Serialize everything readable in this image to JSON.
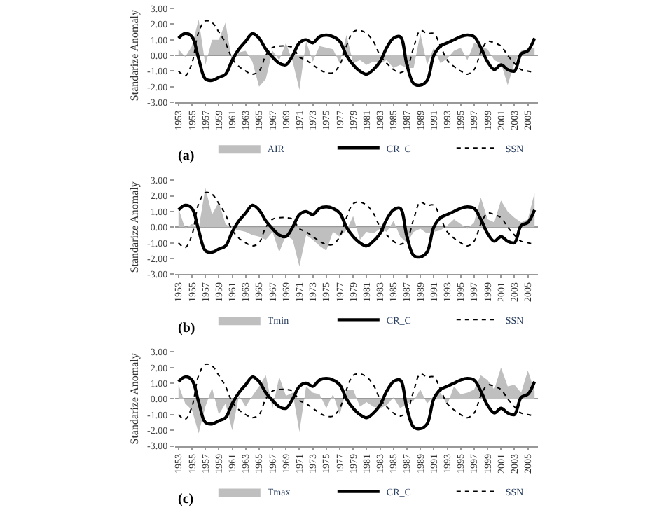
{
  "chart_data": [
    {
      "type": "line",
      "ylabel": "Standarize Anomaly",
      "annotations": [
        "(a)"
      ],
      "legend": "bottom",
      "x": [
        1953,
        1954,
        1955,
        1956,
        1957,
        1958,
        1959,
        1960,
        1961,
        1962,
        1963,
        1964,
        1965,
        1966,
        1967,
        1968,
        1969,
        1970,
        1971,
        1972,
        1973,
        1974,
        1975,
        1976,
        1977,
        1978,
        1979,
        1980,
        1981,
        1982,
        1983,
        1984,
        1985,
        1986,
        1987,
        1988,
        1989,
        1990,
        1991,
        1992,
        1993,
        1994,
        1995,
        1996,
        1997,
        1998,
        1999,
        2000,
        2001,
        2002,
        2003,
        2004,
        2005,
        2006
      ],
      "xlim": [
        1952.5,
        2006.5
      ],
      "xticks": [
        1953,
        1955,
        1957,
        1959,
        1961,
        1963,
        1965,
        1967,
        1969,
        1971,
        1973,
        1975,
        1977,
        1979,
        1981,
        1983,
        1985,
        1987,
        1989,
        1991,
        1993,
        1995,
        1997,
        1999,
        2001,
        2003,
        2005
      ],
      "ylim": [
        -3,
        3
      ],
      "yticks": [
        {
          "value": -3,
          "label": "-3.00"
        },
        {
          "value": -2,
          "label": "-2.00"
        },
        {
          "value": -1,
          "label": "-1.00"
        },
        {
          "value": 0,
          "label": "0.00"
        },
        {
          "value": 1,
          "label": "1.00"
        },
        {
          "value": 2,
          "label": "2.00"
        },
        {
          "value": 3,
          "label": "3.00"
        }
      ],
      "series": [
        {
          "name": "AIR",
          "type": "area",
          "color": "#bfbfbf",
          "values": [
            0.4,
            -0.1,
            0.6,
            2.3,
            -0.6,
            1.0,
            1.0,
            2.1,
            -0.5,
            0.2,
            0.3,
            -0.4,
            -2.0,
            -1.5,
            0.3,
            -0.3,
            0.8,
            -0.4,
            -2.2,
            0.9,
            -0.4,
            0.6,
            0.5,
            0.4,
            -0.5,
            1.3,
            -0.5,
            -0.3,
            -0.6,
            -0.4,
            -0.5,
            -0.3,
            -0.8,
            -0.6,
            -0.8,
            -0.8,
            1.4,
            -0.6,
            0.5,
            -0.5,
            -0.2,
            0.3,
            0.5,
            -0.3,
            0.8,
            0.6,
            0.4,
            -0.3,
            -0.5,
            -1.9,
            -0.5,
            0.3,
            0.4,
            0.5
          ]
        },
        {
          "name": "CR_C",
          "color": "#000000",
          "line_style": "solid",
          "values": [
            1.1,
            1.4,
            1.2,
            -0.2,
            -1.5,
            -1.6,
            -1.4,
            -1.2,
            -0.3,
            0.4,
            0.9,
            1.4,
            1.1,
            0.4,
            -0.1,
            -0.5,
            -0.6,
            0.0,
            0.8,
            1.0,
            0.8,
            1.2,
            1.3,
            1.2,
            0.9,
            0.0,
            -0.6,
            -1.0,
            -1.2,
            -0.9,
            -0.4,
            0.5,
            1.1,
            1.2,
            -0.6,
            -1.8,
            -1.9,
            -1.6,
            0.0,
            0.6,
            0.8,
            1.0,
            1.2,
            1.3,
            1.2,
            0.5,
            -0.4,
            -0.9,
            -0.6,
            -0.9,
            -1.0,
            0.1,
            0.3,
            1.1
          ]
        },
        {
          "name": "SSN",
          "color": "#000000",
          "line_style": "dotted",
          "values": [
            -1.0,
            -1.3,
            -0.5,
            1.5,
            2.2,
            2.1,
            1.5,
            0.8,
            -0.2,
            -0.7,
            -1.0,
            -1.2,
            -1.0,
            0.0,
            0.5,
            0.6,
            0.6,
            0.5,
            -0.1,
            -0.3,
            -0.6,
            -0.9,
            -1.1,
            -1.1,
            -0.6,
            0.6,
            1.5,
            1.6,
            1.4,
            0.9,
            0.0,
            -0.5,
            -0.9,
            -1.1,
            -0.8,
            0.5,
            1.6,
            1.4,
            1.4,
            0.6,
            -0.3,
            -0.7,
            -1.0,
            -1.2,
            -0.9,
            0.2,
            0.9,
            0.8,
            0.6,
            0.0,
            -0.5,
            -0.9,
            -1.0,
            -1.1
          ]
        }
      ]
    },
    {
      "type": "line",
      "ylabel": "Standarize Anomaly",
      "annotations": [
        "(b)"
      ],
      "legend": "bottom",
      "x": [
        1953,
        1954,
        1955,
        1956,
        1957,
        1958,
        1959,
        1960,
        1961,
        1962,
        1963,
        1964,
        1965,
        1966,
        1967,
        1968,
        1969,
        1970,
        1971,
        1972,
        1973,
        1974,
        1975,
        1976,
        1977,
        1978,
        1979,
        1980,
        1981,
        1982,
        1983,
        1984,
        1985,
        1986,
        1987,
        1988,
        1989,
        1990,
        1991,
        1992,
        1993,
        1994,
        1995,
        1996,
        1997,
        1998,
        1999,
        2000,
        2001,
        2002,
        2003,
        2004,
        2005,
        2006
      ],
      "xlim": [
        1952.5,
        2006.5
      ],
      "xticks": [
        1953,
        1955,
        1957,
        1959,
        1961,
        1963,
        1965,
        1967,
        1969,
        1971,
        1973,
        1975,
        1977,
        1979,
        1981,
        1983,
        1985,
        1987,
        1989,
        1991,
        1993,
        1995,
        1997,
        1999,
        2001,
        2003,
        2005
      ],
      "ylim": [
        -3,
        3
      ],
      "yticks": [
        {
          "value": -3,
          "label": "-3.00"
        },
        {
          "value": -2,
          "label": "-2.00"
        },
        {
          "value": -1,
          "label": "-1.00"
        },
        {
          "value": 0,
          "label": "0.00"
        },
        {
          "value": 1,
          "label": "1.00"
        },
        {
          "value": 2,
          "label": "2.00"
        },
        {
          "value": 3,
          "label": "3.00"
        }
      ],
      "series": [
        {
          "name": "Tmin",
          "type": "area",
          "color": "#bfbfbf",
          "values": [
            1.2,
            -0.1,
            0.2,
            -0.1,
            2.5,
            0.8,
            1.6,
            0.2,
            -0.1,
            -0.2,
            -0.3,
            -0.5,
            -0.6,
            -0.8,
            -0.3,
            -1.6,
            -0.5,
            -0.8,
            -2.5,
            -0.5,
            -0.8,
            -1.2,
            -1.5,
            -0.3,
            -0.6,
            -0.2,
            0.7,
            -0.8,
            -0.3,
            -0.4,
            -0.1,
            -0.3,
            0.4,
            -0.6,
            -1.0,
            -0.3,
            -0.1,
            -0.4,
            -0.3,
            -0.2,
            0.1,
            0.5,
            0.2,
            -0.1,
            0.3,
            1.9,
            0.5,
            0.3,
            1.7,
            1.0,
            0.6,
            0.3,
            0.5,
            2.2
          ]
        },
        {
          "name": "CR_C",
          "color": "#000000",
          "line_style": "solid",
          "values": [
            1.1,
            1.4,
            1.2,
            -0.2,
            -1.5,
            -1.6,
            -1.4,
            -1.2,
            -0.3,
            0.4,
            0.9,
            1.4,
            1.1,
            0.4,
            -0.1,
            -0.5,
            -0.6,
            0.0,
            0.8,
            1.0,
            0.8,
            1.2,
            1.3,
            1.2,
            0.9,
            0.0,
            -0.6,
            -1.0,
            -1.2,
            -0.9,
            -0.4,
            0.5,
            1.1,
            1.2,
            -0.6,
            -1.8,
            -1.9,
            -1.6,
            0.0,
            0.6,
            0.8,
            1.0,
            1.2,
            1.3,
            1.2,
            0.5,
            -0.4,
            -0.9,
            -0.6,
            -0.9,
            -1.0,
            0.1,
            0.3,
            1.1
          ]
        },
        {
          "name": "SSN",
          "color": "#000000",
          "line_style": "dotted",
          "values": [
            -1.0,
            -1.3,
            -0.5,
            1.5,
            2.2,
            2.1,
            1.5,
            0.8,
            -0.2,
            -0.7,
            -1.0,
            -1.2,
            -1.0,
            0.0,
            0.5,
            0.6,
            0.6,
            0.5,
            -0.1,
            -0.3,
            -0.6,
            -0.9,
            -1.1,
            -1.1,
            -0.6,
            0.6,
            1.5,
            1.6,
            1.4,
            0.9,
            0.0,
            -0.5,
            -0.9,
            -1.1,
            -0.8,
            0.5,
            1.6,
            1.4,
            1.4,
            0.6,
            -0.3,
            -0.7,
            -1.0,
            -1.2,
            -0.9,
            0.2,
            0.9,
            0.8,
            0.6,
            0.0,
            -0.5,
            -0.9,
            -1.0,
            -1.1
          ]
        }
      ]
    },
    {
      "type": "line",
      "ylabel": "Standarize Anomaly",
      "annotations": [
        "(c)"
      ],
      "legend": "bottom",
      "x": [
        1953,
        1954,
        1955,
        1956,
        1957,
        1958,
        1959,
        1960,
        1961,
        1962,
        1963,
        1964,
        1965,
        1966,
        1967,
        1968,
        1969,
        1970,
        1971,
        1972,
        1973,
        1974,
        1975,
        1976,
        1977,
        1978,
        1979,
        1980,
        1981,
        1982,
        1983,
        1984,
        1985,
        1986,
        1987,
        1988,
        1989,
        1990,
        1991,
        1992,
        1993,
        1994,
        1995,
        1996,
        1997,
        1998,
        1999,
        2000,
        2001,
        2002,
        2003,
        2004,
        2005,
        2006
      ],
      "xlim": [
        1952.5,
        2006.5
      ],
      "xticks": [
        1953,
        1955,
        1957,
        1959,
        1961,
        1963,
        1965,
        1967,
        1969,
        1971,
        1973,
        1975,
        1977,
        1979,
        1981,
        1983,
        1985,
        1987,
        1989,
        1991,
        1993,
        1995,
        1997,
        1999,
        2001,
        2003,
        2005
      ],
      "ylim": [
        -3,
        3
      ],
      "yticks": [
        {
          "value": -3,
          "label": "-3.00"
        },
        {
          "value": -2,
          "label": "-2.00"
        },
        {
          "value": -1,
          "label": "-1.00"
        },
        {
          "value": 0,
          "label": "0.00"
        },
        {
          "value": 1,
          "label": "1.00"
        },
        {
          "value": 2,
          "label": "2.00"
        },
        {
          "value": 3,
          "label": "3.00"
        }
      ],
      "series": [
        {
          "name": "Tmax",
          "type": "area",
          "color": "#bfbfbf",
          "values": [
            0.9,
            -0.3,
            -0.7,
            -2.2,
            -0.5,
            0.7,
            -1.0,
            -0.3,
            -2.0,
            0.2,
            -0.5,
            0.2,
            0.8,
            1.5,
            -0.6,
            1.4,
            0.2,
            0.4,
            -2.1,
            0.8,
            0.4,
            0.3,
            -0.6,
            0.3,
            -1.0,
            0.6,
            0.6,
            -0.5,
            -0.2,
            -0.5,
            -0.6,
            -0.4,
            0.1,
            -0.6,
            -0.3,
            -0.1,
            0.6,
            -0.3,
            0.2,
            0.4,
            -0.4,
            0.8,
            0.3,
            0.4,
            0.6,
            1.5,
            1.2,
            0.6,
            2.0,
            0.8,
            0.9,
            0.4,
            1.8,
            0.5
          ]
        },
        {
          "name": "CR_C",
          "color": "#000000",
          "line_style": "solid",
          "values": [
            1.1,
            1.4,
            1.2,
            -0.2,
            -1.5,
            -1.6,
            -1.4,
            -1.2,
            -0.3,
            0.4,
            0.9,
            1.4,
            1.1,
            0.4,
            -0.1,
            -0.5,
            -0.6,
            0.0,
            0.8,
            1.0,
            0.8,
            1.2,
            1.3,
            1.2,
            0.9,
            0.0,
            -0.6,
            -1.0,
            -1.2,
            -0.9,
            -0.4,
            0.5,
            1.1,
            1.2,
            -0.6,
            -1.8,
            -1.9,
            -1.6,
            0.0,
            0.6,
            0.8,
            1.0,
            1.2,
            1.3,
            1.2,
            0.5,
            -0.4,
            -0.9,
            -0.6,
            -0.9,
            -1.0,
            0.1,
            0.3,
            1.1
          ]
        },
        {
          "name": "SSN",
          "color": "#000000",
          "line_style": "dotted",
          "values": [
            -1.0,
            -1.3,
            -0.5,
            1.5,
            2.2,
            2.1,
            1.5,
            0.8,
            -0.2,
            -0.7,
            -1.0,
            -1.2,
            -1.0,
            0.0,
            0.5,
            0.6,
            0.6,
            0.5,
            -0.1,
            -0.3,
            -0.6,
            -0.9,
            -1.1,
            -1.1,
            -0.6,
            0.6,
            1.5,
            1.6,
            1.4,
            0.9,
            0.0,
            -0.5,
            -0.9,
            -1.1,
            -0.8,
            0.5,
            1.6,
            1.4,
            1.4,
            0.6,
            -0.3,
            -0.7,
            -1.0,
            -1.2,
            -0.9,
            0.2,
            0.9,
            0.8,
            0.6,
            0.0,
            -0.5,
            -0.9,
            -1.0,
            -1.1
          ]
        }
      ]
    }
  ]
}
